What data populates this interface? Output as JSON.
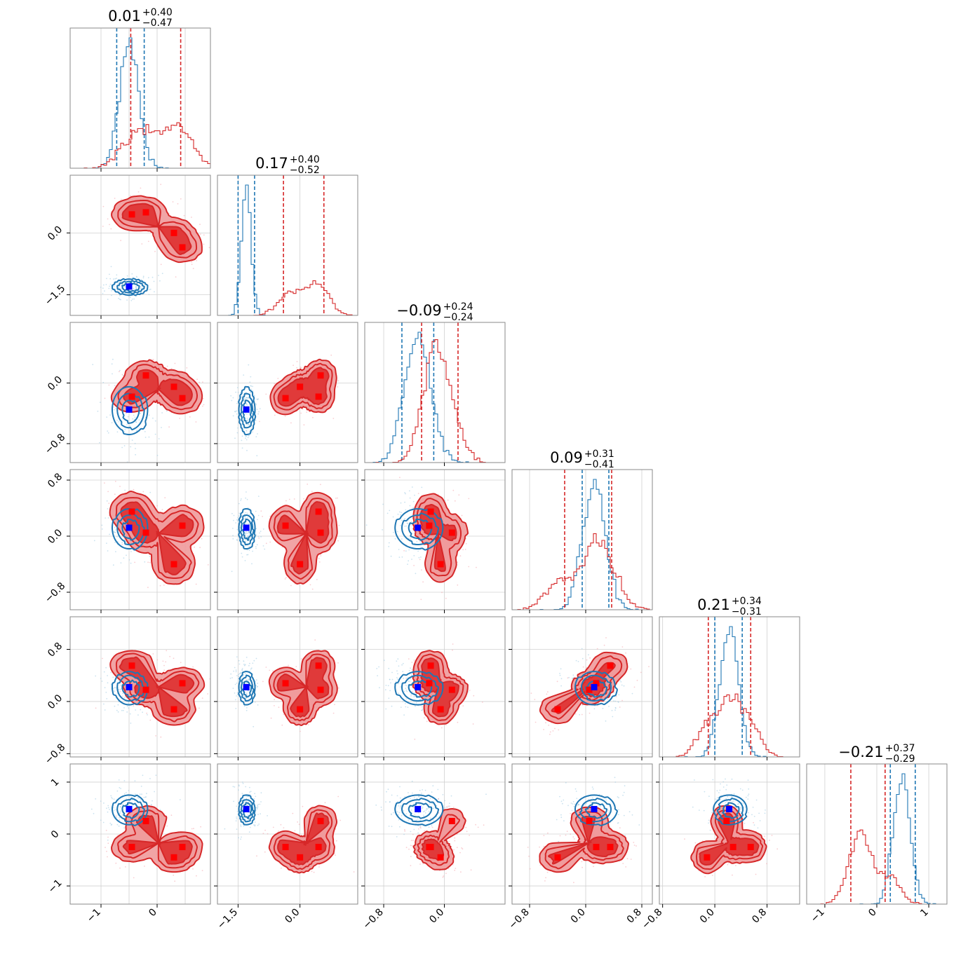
{
  "colors": {
    "blue": "#1f77b4",
    "red": "#d62728",
    "blue_marker": "#0000ff",
    "red_marker": "#ff0000",
    "red_fill_light": "#ef9a9b",
    "red_fill_dark": "#de3030",
    "grid": "#d0d0d0",
    "frame": "#8a8a8a"
  },
  "chart_data": {
    "type": "corner",
    "dimensions": 6,
    "titles": [
      {
        "value": "0.01",
        "plus": "+0.40",
        "minus": "−0.47"
      },
      {
        "value": "0.17",
        "plus": "+0.40",
        "minus": "−0.52"
      },
      {
        "value": "−0.09",
        "plus": "+0.24",
        "minus": "−0.24"
      },
      {
        "value": "0.09",
        "plus": "+0.31",
        "minus": "−0.41"
      },
      {
        "value": "0.21",
        "plus": "+0.34",
        "minus": "−0.31"
      },
      {
        "value": "−0.21",
        "plus": "+0.37",
        "minus": "−0.29"
      }
    ],
    "axes": [
      {
        "range": [
          -1.55,
          0.95
        ],
        "ticks": [
          -1,
          0
        ],
        "tick_labels": [
          "−1",
          "0"
        ],
        "grid": [
          -1,
          -0.5,
          0,
          0.5
        ]
      },
      {
        "range": [
          -2.0,
          1.4
        ],
        "ticks": [
          -1.5,
          0.0
        ],
        "tick_labels": [
          "−1.5",
          "0.0"
        ],
        "grid": [
          -1.5,
          0.0
        ]
      },
      {
        "range": [
          -1.05,
          0.8
        ],
        "ticks": [
          -0.8,
          0.0
        ],
        "tick_labels": [
          "−0.8",
          "0.0"
        ],
        "grid": [
          -0.8,
          0.0
        ]
      },
      {
        "range": [
          -1.05,
          0.95
        ],
        "ticks": [
          -0.8,
          0.0,
          0.8
        ],
        "tick_labels": [
          "−0.8",
          "0.0",
          "0.8"
        ],
        "grid": [
          -0.8,
          0.0,
          0.8
        ]
      },
      {
        "range": [
          -0.85,
          1.3
        ],
        "ticks": [
          -0.8,
          0.0,
          0.8
        ],
        "tick_labels": [
          "−0.8",
          "0.0",
          "0.8"
        ],
        "grid": [
          -0.8,
          0.0,
          0.8
        ]
      },
      {
        "range": [
          -1.35,
          1.35
        ],
        "ticks": [
          -1,
          0,
          1
        ],
        "tick_labels": [
          "−1",
          "0",
          "1"
        ],
        "grid": [
          -1,
          0,
          1
        ]
      }
    ],
    "series": [
      {
        "name": "",
        "color": "#1f77b4",
        "mean": [
          -0.5,
          -1.3,
          -0.35,
          0.12,
          0.22,
          0.48
        ],
        "sd": [
          0.17,
          0.11,
          0.17,
          0.16,
          0.14,
          0.16
        ],
        "quantile_lines": [
          [
            -0.72,
            -0.23
          ],
          [
            -1.5,
            -1.1
          ],
          [
            -0.56,
            -0.14
          ],
          [
            -0.05,
            0.33
          ],
          [
            0.0,
            0.42
          ],
          [
            0.26,
            0.74
          ]
        ],
        "markers": [
          [
            -0.5,
            -1.3,
            -0.35,
            0.12,
            0.22,
            0.48
          ]
        ]
      },
      {
        "name": "",
        "color": "#d62728",
        "mean": [
          0.0,
          0.2,
          -0.1,
          0.08,
          0.21,
          -0.22
        ],
        "sd": [
          0.35,
          0.36,
          0.2,
          0.26,
          0.22,
          0.28
        ],
        "quantile_lines": [
          [
            -0.47,
            0.42
          ],
          [
            -0.4,
            0.58
          ],
          [
            -0.3,
            0.18
          ],
          [
            -0.3,
            0.37
          ],
          [
            -0.1,
            0.55
          ],
          [
            -0.5,
            0.16
          ]
        ],
        "markers": [
          [
            -0.45,
            0.45,
            -0.18,
            0.35,
            0.55,
            -0.25
          ],
          [
            -0.2,
            0.5,
            0.1,
            0.05,
            0.18,
            0.25
          ],
          [
            0.3,
            0.0,
            -0.05,
            -0.4,
            -0.12,
            -0.45
          ],
          [
            0.45,
            -0.35,
            -0.2,
            0.15,
            0.28,
            -0.25
          ]
        ]
      }
    ]
  }
}
